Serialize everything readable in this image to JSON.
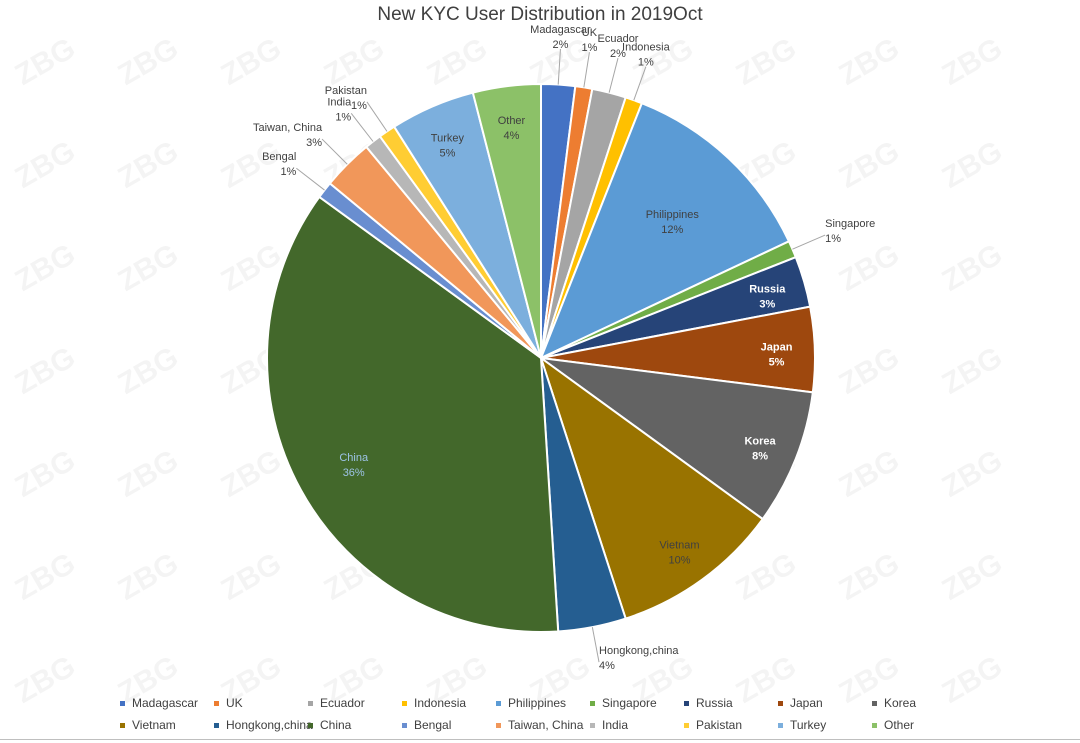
{
  "chart_data": {
    "type": "pie",
    "title": "New KYC User Distribution in 2019Oct",
    "slices": [
      {
        "label": "Madagascar",
        "value": 2,
        "value_label": "2%",
        "color": "#4472c4"
      },
      {
        "label": "UK",
        "value": 1,
        "value_label": "1%",
        "color": "#ed7d31"
      },
      {
        "label": "Ecuador",
        "value": 2,
        "value_label": "2%",
        "color": "#a5a5a5"
      },
      {
        "label": "Indonesia",
        "value": 1,
        "value_label": "1%",
        "color": "#ffc000"
      },
      {
        "label": "Philippines",
        "value": 12,
        "value_label": "12%",
        "color": "#5b9bd5"
      },
      {
        "label": "Singapore",
        "value": 1,
        "value_label": "1%",
        "color": "#70ad47"
      },
      {
        "label": "Russia",
        "value": 3,
        "value_label": "3%",
        "color": "#264478"
      },
      {
        "label": "Japan",
        "value": 5,
        "value_label": "5%",
        "color": "#9e480e"
      },
      {
        "label": "Korea",
        "value": 8,
        "value_label": "8%",
        "color": "#636363"
      },
      {
        "label": "Vietnam",
        "value": 10,
        "value_label": "10%",
        "color": "#997300"
      },
      {
        "label": "Hongkong,china",
        "value": 4,
        "value_label": "4%",
        "color": "#255e91"
      },
      {
        "label": "China",
        "value": 36,
        "value_label": "36%",
        "color": "#43682b"
      },
      {
        "label": "Bengal",
        "value": 1,
        "value_label": "1%",
        "color": "#698ed0"
      },
      {
        "label": "Taiwan, China",
        "value": 3,
        "value_label": "3%",
        "color": "#f1975a"
      },
      {
        "label": "India",
        "value": 1,
        "value_label": "1%",
        "color": "#b7b7b7"
      },
      {
        "label": "Pakistan",
        "value": 1,
        "value_label": "1%",
        "color": "#ffcd33"
      },
      {
        "label": "Turkey",
        "value": 5,
        "value_label": "5%",
        "color": "#7cafdd"
      },
      {
        "label": "Other",
        "value": 4,
        "value_label": "4%",
        "color": "#8cc168"
      }
    ],
    "start_angle_deg": 0,
    "direction": "clockwise",
    "legend_position": "bottom",
    "watermark": "ZBG"
  }
}
